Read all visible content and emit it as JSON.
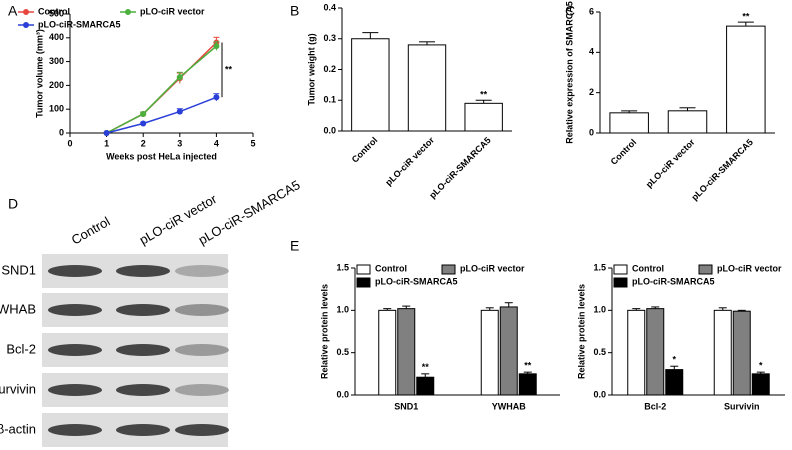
{
  "chart_data": [
    {
      "type": "line",
      "panel": "A",
      "xlabel": "Weeks post HeLa injected",
      "ylabel": "Tumor volume (mm³)",
      "annotation": "**",
      "x": [
        1,
        2,
        3,
        4
      ],
      "xlim": [
        0,
        5
      ],
      "xticks": [
        0,
        1,
        2,
        3,
        4,
        5
      ],
      "ylim": [
        0,
        500
      ],
      "yticks": [
        0,
        100,
        200,
        300,
        400,
        500
      ],
      "series": [
        {
          "name": "Control",
          "color": "#e8463c",
          "values": [
            0,
            80,
            230,
            380
          ],
          "errors": [
            2,
            8,
            22,
            22
          ]
        },
        {
          "name": "pLO-ciR vector",
          "color": "#4caf3e",
          "values": [
            0,
            80,
            235,
            365
          ],
          "errors": [
            2,
            8,
            20,
            18
          ]
        },
        {
          "name": "pLO-ciR-SMARCA5",
          "color": "#2a3fd8",
          "values": [
            0,
            40,
            90,
            150
          ],
          "errors": [
            2,
            5,
            12,
            15
          ]
        }
      ]
    },
    {
      "type": "bar",
      "panel": "B",
      "ylabel": "Tumor weight (g)",
      "categories": [
        "Control",
        "pLO-ciR vector",
        "pLO-ciR-SMARCA5"
      ],
      "values": [
        0.3,
        0.28,
        0.09
      ],
      "errors": [
        0.02,
        0.01,
        0.01
      ],
      "sig": [
        null,
        null,
        "**"
      ],
      "color": "#ffffff",
      "ylim": [
        0,
        0.4
      ],
      "yticks": [
        {
          "value": 0,
          "label": "0.0"
        },
        0.1,
        0.2,
        0.3,
        0.4
      ]
    },
    {
      "type": "bar",
      "panel": "C",
      "ylabel": "Relative expression of SMARCA5",
      "categories": [
        "Control",
        "pLO-ciR vector",
        "pLO-ciR-SMARCA5"
      ],
      "values": [
        1.0,
        1.1,
        5.3
      ],
      "errors": [
        0.1,
        0.15,
        0.2
      ],
      "sig": [
        null,
        null,
        "**"
      ],
      "color": "#ffffff",
      "ylim": [
        0,
        6
      ],
      "yticks": [
        0,
        2,
        4,
        6
      ]
    },
    {
      "type": "bar",
      "panel": "E",
      "ylabel": "Relative protein levels",
      "categories": [
        "SND1",
        "YWHAB"
      ],
      "ylim": [
        0,
        1.5
      ],
      "yticks": [
        {
          "value": 0,
          "label": "0.0"
        },
        0.5,
        {
          "value": 1,
          "label": "1.0"
        },
        1.5
      ],
      "series": [
        {
          "name": "Control",
          "color": "#ffffff",
          "values": [
            1.0,
            1.0
          ],
          "errors": [
            0.02,
            0.03
          ]
        },
        {
          "name": "pLO-ciR vector",
          "color": "#808080",
          "values": [
            1.02,
            1.04
          ],
          "errors": [
            0.03,
            0.05
          ]
        },
        {
          "name": "pLO-ciR-SMARCA5",
          "color": "#000000",
          "values": [
            0.21,
            0.25
          ],
          "errors": [
            0.04,
            0.02
          ],
          "sig": [
            "**",
            "**"
          ]
        }
      ]
    },
    {
      "type": "bar",
      "ylabel": "Relative protein levels",
      "categories": [
        "Bcl-2",
        "Survivin"
      ],
      "ylim": [
        0,
        1.5
      ],
      "yticks": [
        {
          "value": 0,
          "label": "0.0"
        },
        0.5,
        {
          "value": 1,
          "label": "1.0"
        },
        1.5
      ],
      "series": [
        {
          "name": "Control",
          "color": "#ffffff",
          "values": [
            1.0,
            1.0
          ],
          "errors": [
            0.02,
            0.03
          ]
        },
        {
          "name": "pLO-ciR vector",
          "color": "#808080",
          "values": [
            1.02,
            0.99
          ],
          "errors": [
            0.02,
            0.01
          ]
        },
        {
          "name": "pLO-ciR-SMARCA5",
          "color": "#000000",
          "values": [
            0.3,
            0.25
          ],
          "errors": [
            0.04,
            0.02
          ],
          "sig": [
            "*",
            "*"
          ]
        }
      ]
    }
  ],
  "blot": {
    "panel": "D",
    "lanes": [
      "Control",
      "pLO-ciR vector",
      "pLO-ciR-SMARCA5"
    ],
    "proteins": [
      "SND1",
      "YWHAB",
      "Bcl-2",
      "Survivin",
      "β-actin"
    ]
  }
}
